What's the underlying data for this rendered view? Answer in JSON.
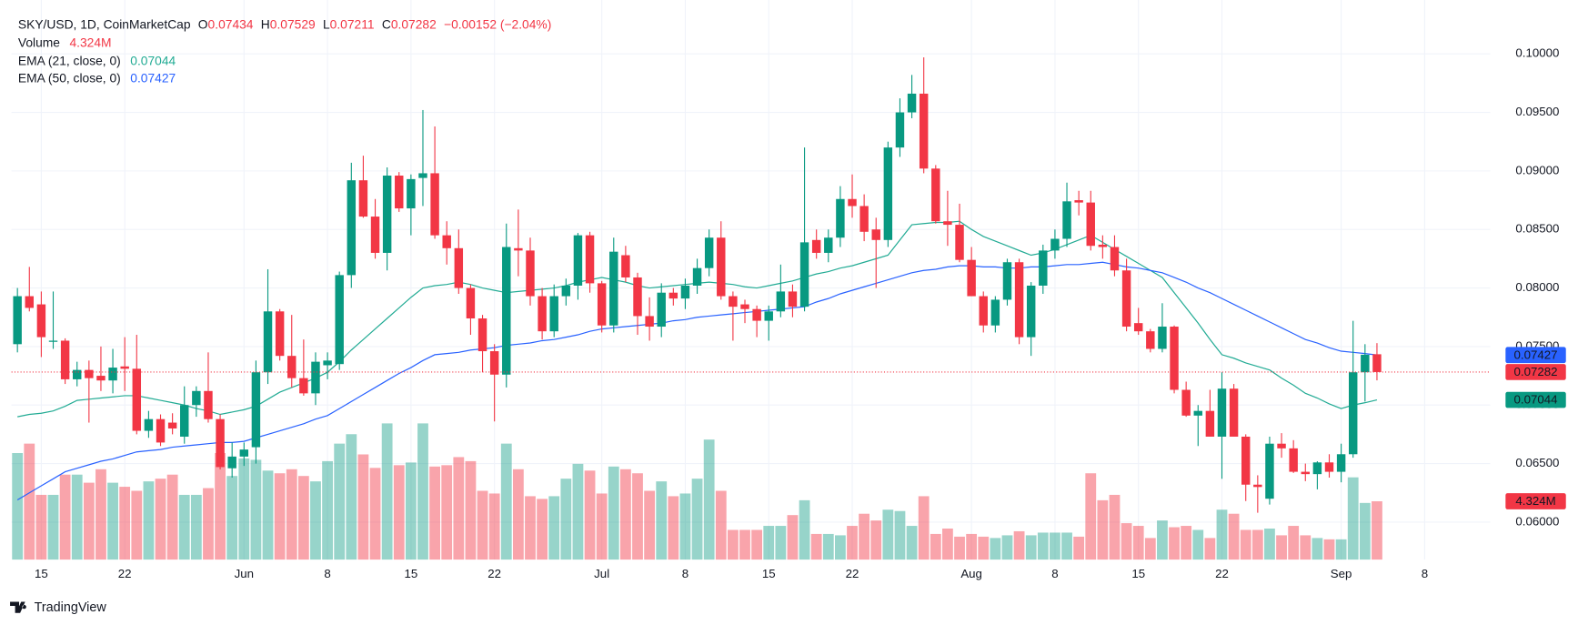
{
  "chart_data": {
    "type": "candlestick",
    "title": "SKY/USD, 1D, CoinMarketCap",
    "ohlc_labels": [
      "O",
      "H",
      "L",
      "C"
    ],
    "change": "−0.00152 (−2.04%)",
    "branding": "TradingView",
    "up_color": "#089981",
    "down_color": "#f23645",
    "grid": true,
    "ylim": [
      0.0568,
      0.1046
    ],
    "yticks": [
      {
        "value": 0.06,
        "label": "0.06000"
      },
      {
        "value": 0.065,
        "label": "0.06500"
      },
      {
        "value": 0.07,
        "label": "0.07000"
      },
      {
        "value": 0.075,
        "label": "0.07500"
      },
      {
        "value": 0.08,
        "label": "0.08000"
      },
      {
        "value": 0.085,
        "label": "0.08500"
      },
      {
        "value": 0.09,
        "label": "0.09000"
      },
      {
        "value": 0.095,
        "label": "0.09500"
      },
      {
        "value": 0.1,
        "label": "0.10000"
      }
    ],
    "categories": [
      null,
      null,
      "15",
      null,
      null,
      null,
      null,
      null,
      null,
      "22",
      null,
      null,
      null,
      null,
      null,
      null,
      null,
      null,
      null,
      "Jun",
      null,
      null,
      null,
      null,
      null,
      null,
      "8",
      null,
      null,
      null,
      null,
      null,
      null,
      "15",
      null,
      null,
      null,
      null,
      null,
      null,
      "22",
      null,
      null,
      null,
      null,
      null,
      null,
      null,
      null,
      "Jul",
      null,
      null,
      null,
      null,
      null,
      null,
      "8",
      null,
      null,
      null,
      null,
      null,
      null,
      "15",
      null,
      null,
      null,
      null,
      null,
      null,
      "22",
      null,
      null,
      null,
      null,
      null,
      null,
      null,
      null,
      null,
      "Aug",
      null,
      null,
      null,
      null,
      null,
      null,
      "8",
      null,
      null,
      null,
      null,
      null,
      null,
      "15",
      null,
      null,
      null,
      null,
      null,
      null,
      "22",
      null,
      null,
      null,
      null,
      null,
      null,
      null,
      null,
      null,
      "Sep",
      null,
      null,
      null,
      null,
      null,
      null,
      "8",
      null,
      null,
      null,
      null,
      null
    ],
    "open": [
      0.0752,
      0.0793,
      0.0786,
      0.0754,
      0.0755,
      0.0722,
      0.073,
      0.0725,
      0.0721,
      0.0733,
      0.0731,
      0.0678,
      0.0688,
      0.0685,
      0.0673,
      0.07,
      0.0712,
      0.0688,
      0.0646,
      0.0656,
      0.0664,
      0.0728,
      0.078,
      0.0742,
      0.0723,
      0.071,
      0.0734,
      0.0735,
      0.0811,
      0.0892,
      0.0861,
      0.083,
      0.0896,
      0.0868,
      0.0894,
      0.0898,
      0.0845,
      0.0834,
      0.08,
      0.0774,
      0.0746,
      0.0726,
      0.0834,
      0.0832,
      0.0793,
      0.0763,
      0.0793,
      0.0802,
      0.0845,
      0.0804,
      0.0768,
      0.0828,
      0.0809,
      0.0776,
      0.0767,
      0.0796,
      0.0791,
      0.0802,
      0.0817,
      0.0843,
      0.0793,
      0.0786,
      0.0782,
      0.0772,
      0.078,
      0.0797,
      0.0784,
      0.0841,
      0.083,
      0.0843,
      0.0876,
      0.087,
      0.085,
      0.0841,
      0.092,
      0.095,
      0.0966,
      0.0902,
      0.0857,
      0.0854,
      0.0824,
      0.0793,
      0.0768,
      0.079,
      0.0822,
      0.0758,
      0.0802,
      0.0832,
      0.0842,
      0.0875,
      0.0873,
      0.0837,
      0.0835,
      0.0815,
      0.077,
      0.0763,
      0.0748,
      0.0767,
      0.0713,
      0.0691,
      0.0695,
      0.0673,
      0.0714,
      0.0673,
      0.0632,
      0.062,
      0.0667,
      0.0663,
      0.0643,
      0.0641,
      0.0651,
      0.0643,
      0.0658,
      0.0728,
      0.07434,
      null,
      null,
      null,
      null,
      null,
      null,
      null,
      null,
      null
    ],
    "high": [
      0.08,
      0.0818,
      0.0797,
      0.0797,
      0.0757,
      0.0737,
      0.0738,
      0.075,
      0.0748,
      0.0758,
      0.076,
      0.0695,
      0.0692,
      0.0693,
      0.0716,
      0.0716,
      0.0745,
      0.0692,
      0.0668,
      0.0668,
      0.0738,
      0.0816,
      0.0782,
      0.0777,
      0.0756,
      0.0745,
      0.0745,
      0.0814,
      0.0907,
      0.0913,
      0.0876,
      0.0903,
      0.0899,
      0.0897,
      0.0952,
      0.0938,
      0.0857,
      0.085,
      0.0803,
      0.0777,
      0.0752,
      0.0855,
      0.0867,
      0.0843,
      0.08,
      0.0803,
      0.0808,
      0.0847,
      0.0848,
      0.0806,
      0.0843,
      0.0836,
      0.0813,
      0.0792,
      0.0804,
      0.08,
      0.0808,
      0.0825,
      0.085,
      0.0857,
      0.0797,
      0.079,
      0.0785,
      0.0785,
      0.082,
      0.0803,
      0.092,
      0.085,
      0.085,
      0.0887,
      0.0897,
      0.088,
      0.086,
      0.0925,
      0.0962,
      0.0982,
      0.0997,
      0.0905,
      0.0883,
      0.0872,
      0.0835,
      0.0797,
      0.0793,
      0.0825,
      0.0825,
      0.0805,
      0.0837,
      0.085,
      0.089,
      0.0883,
      0.0883,
      0.0845,
      0.0845,
      0.0825,
      0.0783,
      0.0765,
      0.0787,
      0.0768,
      0.072,
      0.07,
      0.0713,
      0.0728,
      0.0718,
      0.0675,
      0.064,
      0.0673,
      0.0676,
      0.067,
      0.065,
      0.0652,
      0.0658,
      0.0667,
      0.0772,
      0.0752,
      0.07529,
      null,
      null,
      null,
      null,
      null,
      null,
      null,
      null,
      null
    ],
    "low": [
      0.0745,
      0.078,
      0.0741,
      0.0748,
      0.0718,
      0.0716,
      0.0685,
      0.0712,
      0.071,
      0.0712,
      0.0675,
      0.0672,
      0.0665,
      0.0675,
      0.0667,
      0.069,
      0.0685,
      0.0645,
      0.0638,
      0.0648,
      0.065,
      0.0718,
      0.0738,
      0.0715,
      0.0708,
      0.07,
      0.0722,
      0.073,
      0.08,
      0.086,
      0.0825,
      0.0815,
      0.0865,
      0.0845,
      0.087,
      0.0842,
      0.082,
      0.0795,
      0.076,
      0.0728,
      0.0686,
      0.0715,
      0.081,
      0.0785,
      0.0756,
      0.0758,
      0.0785,
      0.079,
      0.0796,
      0.0762,
      0.0762,
      0.0805,
      0.076,
      0.0755,
      0.0758,
      0.0785,
      0.0782,
      0.0795,
      0.081,
      0.079,
      0.0755,
      0.077,
      0.0758,
      0.0755,
      0.0775,
      0.0775,
      0.078,
      0.0825,
      0.0822,
      0.0835,
      0.086,
      0.084,
      0.08,
      0.0835,
      0.0912,
      0.0945,
      0.0898,
      0.0855,
      0.0836,
      0.0822,
      0.0793,
      0.0762,
      0.0762,
      0.0785,
      0.0752,
      0.0742,
      0.0795,
      0.0825,
      0.0835,
      0.0862,
      0.0832,
      0.0825,
      0.081,
      0.0763,
      0.076,
      0.0745,
      0.0745,
      0.071,
      0.069,
      0.0665,
      0.0673,
      0.0637,
      0.0673,
      0.0618,
      0.0608,
      0.0615,
      0.0655,
      0.0642,
      0.0635,
      0.0628,
      0.0638,
      0.0634,
      0.0655,
      0.0703,
      0.07211,
      null,
      null,
      null,
      null,
      null,
      null,
      null,
      null,
      null
    ],
    "close": [
      0.0793,
      0.0783,
      0.0758,
      0.0755,
      0.0722,
      0.073,
      0.0723,
      0.0721,
      0.0732,
      0.0731,
      0.0678,
      0.0688,
      0.0668,
      0.068,
      0.07,
      0.0712,
      0.0688,
      0.0647,
      0.0656,
      0.0662,
      0.0728,
      0.078,
      0.0742,
      0.0723,
      0.071,
      0.0737,
      0.0738,
      0.0811,
      0.0892,
      0.0861,
      0.083,
      0.0896,
      0.0868,
      0.0893,
      0.0898,
      0.0845,
      0.0834,
      0.08,
      0.0774,
      0.0746,
      0.0726,
      0.0835,
      0.0832,
      0.0793,
      0.0763,
      0.0793,
      0.0802,
      0.0845,
      0.0804,
      0.0768,
      0.0831,
      0.0809,
      0.0776,
      0.0767,
      0.0796,
      0.0791,
      0.0802,
      0.0817,
      0.0843,
      0.0793,
      0.0784,
      0.0782,
      0.0772,
      0.078,
      0.0797,
      0.0784,
      0.0839,
      0.083,
      0.0843,
      0.0876,
      0.087,
      0.0848,
      0.0841,
      0.092,
      0.095,
      0.0966,
      0.0902,
      0.0857,
      0.0854,
      0.0824,
      0.0793,
      0.0768,
      0.079,
      0.0822,
      0.0758,
      0.0802,
      0.0832,
      0.0842,
      0.0874,
      0.0873,
      0.0836,
      0.0835,
      0.0815,
      0.0767,
      0.0763,
      0.0748,
      0.0767,
      0.0713,
      0.0691,
      0.0695,
      0.0673,
      0.0714,
      0.0673,
      0.0632,
      0.063,
      0.0667,
      0.0663,
      0.0643,
      0.0641,
      0.0651,
      0.0643,
      0.0658,
      0.0728,
      0.0743,
      0.07282,
      null,
      null,
      null,
      null,
      null,
      null,
      null,
      null,
      null
    ],
    "volume": {
      "name": "Volume",
      "value_label": "4.324M",
      "ylim": [
        0,
        41.5
      ],
      "values": [
        7.9,
        8.6,
        4.8,
        4.8,
        6.3,
        6.3,
        5.7,
        6.7,
        5.7,
        5.4,
        5.1,
        5.8,
        6.0,
        6.3,
        4.8,
        4.8,
        5.3,
        7.9,
        6.2,
        7.5,
        7.4,
        6.6,
        6.4,
        6.7,
        6.2,
        5.8,
        7.3,
        8.6,
        9.3,
        7.8,
        6.8,
        10.1,
        7.0,
        7.2,
        10.1,
        6.9,
        7.0,
        7.6,
        7.3,
        5.1,
        4.9,
        8.6,
        6.7,
        4.7,
        4.5,
        4.7,
        6.0,
        7.1,
        6.6,
        4.9,
        6.9,
        6.7,
        6.4,
        5.1,
        5.8,
        4.7,
        4.9,
        6.0,
        8.9,
        5.1,
        2.2,
        2.2,
        2.2,
        2.5,
        2.5,
        3.3,
        4.4,
        1.9,
        1.9,
        1.8,
        2.5,
        3.4,
        2.9,
        3.7,
        3.6,
        2.5,
        4.7,
        1.9,
        2.3,
        1.7,
        1.9,
        1.7,
        1.6,
        1.8,
        2.1,
        1.8,
        2.0,
        2.0,
        2.0,
        1.7,
        6.4,
        4.4,
        4.8,
        2.7,
        2.5,
        1.6,
        2.9,
        2.4,
        2.5,
        2.2,
        1.6,
        3.7,
        3.4,
        2.2,
        2.2,
        2.3,
        1.8,
        2.5,
        1.8,
        1.6,
        1.5,
        1.5,
        6.1,
        4.2,
        4.324,
        null,
        null,
        null,
        null,
        null,
        null,
        null,
        null,
        null
      ]
    },
    "series": [
      {
        "name": "EMA (21, close, 0)",
        "color": "#22ab94",
        "values": [
          0.069,
          0.0692,
          0.0693,
          0.0695,
          0.0699,
          0.0704,
          0.0705,
          0.0706,
          0.0707,
          0.0708,
          0.0708,
          0.0706,
          0.0704,
          0.0702,
          0.07,
          0.0697,
          0.0695,
          0.0692,
          0.0694,
          0.0696,
          0.0699,
          0.0705,
          0.0711,
          0.0715,
          0.0719,
          0.0723,
          0.0728,
          0.0737,
          0.0747,
          0.0756,
          0.0765,
          0.0774,
          0.0783,
          0.0792,
          0.08,
          0.0802,
          0.0803,
          0.0805,
          0.0803,
          0.08,
          0.0798,
          0.0796,
          0.0797,
          0.0798,
          0.0799,
          0.08,
          0.0802,
          0.0805,
          0.0807,
          0.0809,
          0.0807,
          0.0805,
          0.0802,
          0.08,
          0.0801,
          0.0802,
          0.0803,
          0.0804,
          0.0805,
          0.0804,
          0.0803,
          0.0801,
          0.08,
          0.0802,
          0.0804,
          0.0806,
          0.0809,
          0.0812,
          0.0814,
          0.0817,
          0.0819,
          0.0822,
          0.0825,
          0.0828,
          0.0841,
          0.0854,
          0.0855,
          0.0856,
          0.0856,
          0.0857,
          0.085,
          0.0844,
          0.084,
          0.0836,
          0.0832,
          0.0828,
          0.083,
          0.0833,
          0.0837,
          0.0841,
          0.0845,
          0.0839,
          0.0833,
          0.0827,
          0.0821,
          0.0815,
          0.0809,
          0.0796,
          0.0783,
          0.077,
          0.0756,
          0.0743,
          0.074,
          0.0736,
          0.0733,
          0.073,
          0.0723,
          0.0717,
          0.071,
          0.0706,
          0.0701,
          0.0697,
          0.07,
          0.0702,
          0.07044,
          null,
          null,
          null,
          null,
          null,
          null,
          null,
          null,
          null
        ]
      },
      {
        "name": "EMA (50, close, 0)",
        "color": "#2962ff",
        "values": [
          0.0619,
          0.0625,
          0.0631,
          0.0637,
          0.0643,
          0.0646,
          0.0649,
          0.0652,
          0.0654,
          0.0657,
          0.066,
          0.0661,
          0.0662,
          0.0664,
          0.0665,
          0.0666,
          0.0667,
          0.0668,
          0.0668,
          0.0669,
          0.0672,
          0.0675,
          0.0678,
          0.0681,
          0.0684,
          0.0688,
          0.0691,
          0.0697,
          0.0703,
          0.0709,
          0.0715,
          0.0721,
          0.0727,
          0.0732,
          0.0738,
          0.0743,
          0.0744,
          0.0745,
          0.0747,
          0.0748,
          0.0749,
          0.0751,
          0.0752,
          0.0753,
          0.0755,
          0.0756,
          0.0758,
          0.076,
          0.0763,
          0.0765,
          0.0766,
          0.0767,
          0.0768,
          0.0769,
          0.077,
          0.0772,
          0.0773,
          0.0775,
          0.0776,
          0.0777,
          0.0778,
          0.0779,
          0.078,
          0.0781,
          0.0782,
          0.0783,
          0.0784,
          0.0788,
          0.0791,
          0.0795,
          0.0798,
          0.0801,
          0.0804,
          0.0807,
          0.081,
          0.0813,
          0.0815,
          0.0816,
          0.0818,
          0.0819,
          0.0819,
          0.0818,
          0.0818,
          0.0817,
          0.0817,
          0.0818,
          0.0818,
          0.0819,
          0.082,
          0.082,
          0.0821,
          0.0822,
          0.082,
          0.0818,
          0.0817,
          0.0815,
          0.0813,
          0.0809,
          0.0805,
          0.08,
          0.0796,
          0.0791,
          0.0786,
          0.0781,
          0.0776,
          0.0771,
          0.0766,
          0.0761,
          0.0756,
          0.0753,
          0.0749,
          0.0746,
          0.0745,
          0.0744,
          0.07427,
          null,
          null,
          null,
          null,
          null,
          null,
          null,
          null,
          null
        ]
      }
    ]
  }
}
